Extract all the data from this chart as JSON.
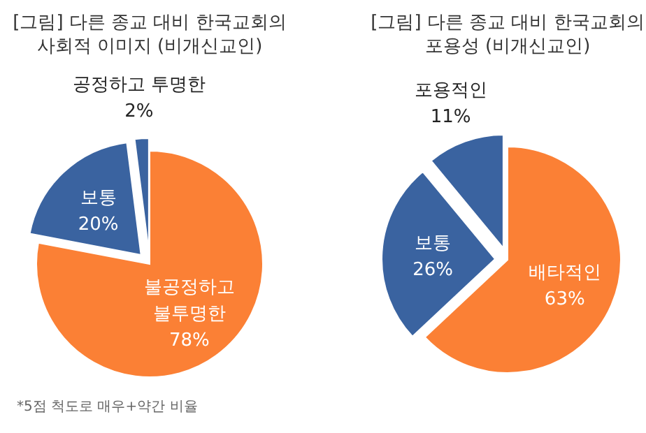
{
  "chart_data": [
    {
      "type": "pie",
      "title": "[그림] 다른 종교 대비 한국교회의\n사회적 이미지 (비개신교인)",
      "categories": [
        "불공정하고 불투명한",
        "보통",
        "공정하고 투명한"
      ],
      "values": [
        78,
        20,
        2
      ],
      "value_labels": [
        "78%",
        "20%",
        "2%"
      ],
      "colors": [
        "#fb8035",
        "#3a63a0",
        "#3a63a0"
      ],
      "annotations": [
        "*5점 척도로 매우+약간 비율"
      ]
    },
    {
      "type": "pie",
      "title": "[그림] 다른 종교 대비 한국교회의\n포용성 (비개신교인)",
      "categories": [
        "배타적인",
        "보통",
        "포용적인"
      ],
      "values": [
        63,
        26,
        11
      ],
      "value_labels": [
        "63%",
        "26%",
        "11%"
      ],
      "colors": [
        "#fb8035",
        "#3a63a0",
        "#3a63a0"
      ]
    }
  ]
}
